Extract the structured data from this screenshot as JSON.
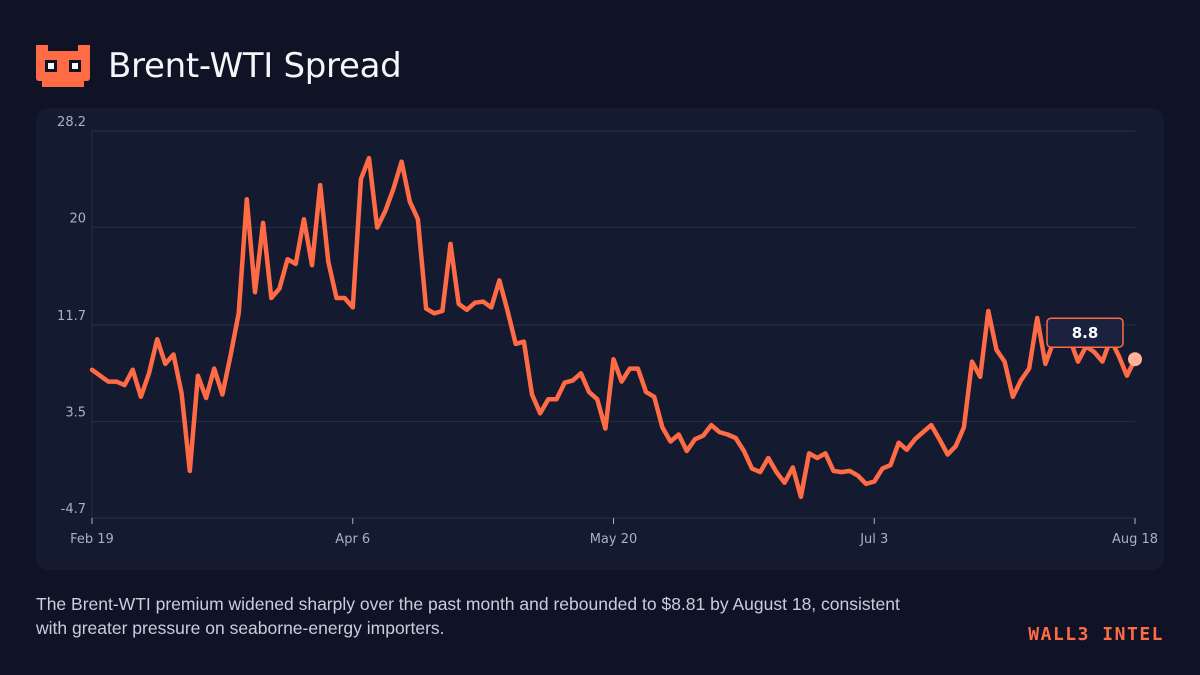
{
  "header": {
    "title": "Brent-WTI Spread",
    "logo_icon": "masked-face-logo-icon"
  },
  "caption": "The Brent-WTI premium widened sharply over the past month and rebounded to $8.81 by August 18, consistent with greater pressure on seaborne-energy importers.",
  "brand": "WALL3 INTEL",
  "colors": {
    "background": "#0f1325",
    "panel": "#141a30",
    "line": "#ff6b45",
    "end_marker": "#ffb199",
    "grid": "#252c47",
    "axis_text": "#a9b0c6",
    "brand": "#ff6b45"
  },
  "chart_data": {
    "type": "line",
    "title": "Brent-WTI Spread",
    "xlabel": "",
    "ylabel": "",
    "ylim": [
      -4.7,
      28.2
    ],
    "yticks": [
      "28.2",
      "20",
      "11.7",
      "3.5",
      "-4.7"
    ],
    "xticks": [
      "Feb 19",
      "Apr 6",
      "May 20",
      "Jul 3",
      "Aug 18"
    ],
    "grid": true,
    "last_value_label": "8.8",
    "series": [
      {
        "values": [
          7.9,
          7.4,
          6.9,
          6.9,
          6.6,
          7.9,
          5.6,
          7.6,
          10.5,
          8.4,
          9.2,
          5.9,
          -0.7,
          7.4,
          5.5,
          8.0,
          5.8,
          9.1,
          12.7,
          22.4,
          14.5,
          20.4,
          14.0,
          14.8,
          17.3,
          16.9,
          20.7,
          16.8,
          23.6,
          17.1,
          14.0,
          14.0,
          13.2,
          24.1,
          25.9,
          20.0,
          21.4,
          23.3,
          25.6,
          22.2,
          20.7,
          13.1,
          12.7,
          12.9,
          18.6,
          13.5,
          13.0,
          13.6,
          13.7,
          13.2,
          15.5,
          12.9,
          10.1,
          10.3,
          5.8,
          4.2,
          5.4,
          5.4,
          6.8,
          7.0,
          7.6,
          6.0,
          5.4,
          2.9,
          8.8,
          6.9,
          8.0,
          8.0,
          6.0,
          5.6,
          3.0,
          1.8,
          2.4,
          1.0,
          2.0,
          2.3,
          3.2,
          2.6,
          2.4,
          2.1,
          1.0,
          -0.5,
          -0.8,
          0.4,
          -0.8,
          -1.7,
          -0.4,
          -2.9,
          0.8,
          0.4,
          0.8,
          -0.7,
          -0.8,
          -0.7,
          -1.1,
          -1.8,
          -1.6,
          -0.5,
          -0.2,
          1.7,
          1.1,
          2.0,
          2.6,
          3.2,
          2.0,
          0.7,
          1.4,
          3.0,
          8.6,
          7.3,
          12.9,
          9.6,
          8.6,
          5.6,
          7.0,
          8.0,
          12.3,
          8.4,
          10.3,
          11.5,
          10.5,
          8.6,
          9.9,
          9.4,
          8.6,
          10.5,
          9.1,
          7.4,
          8.8
        ]
      }
    ]
  }
}
